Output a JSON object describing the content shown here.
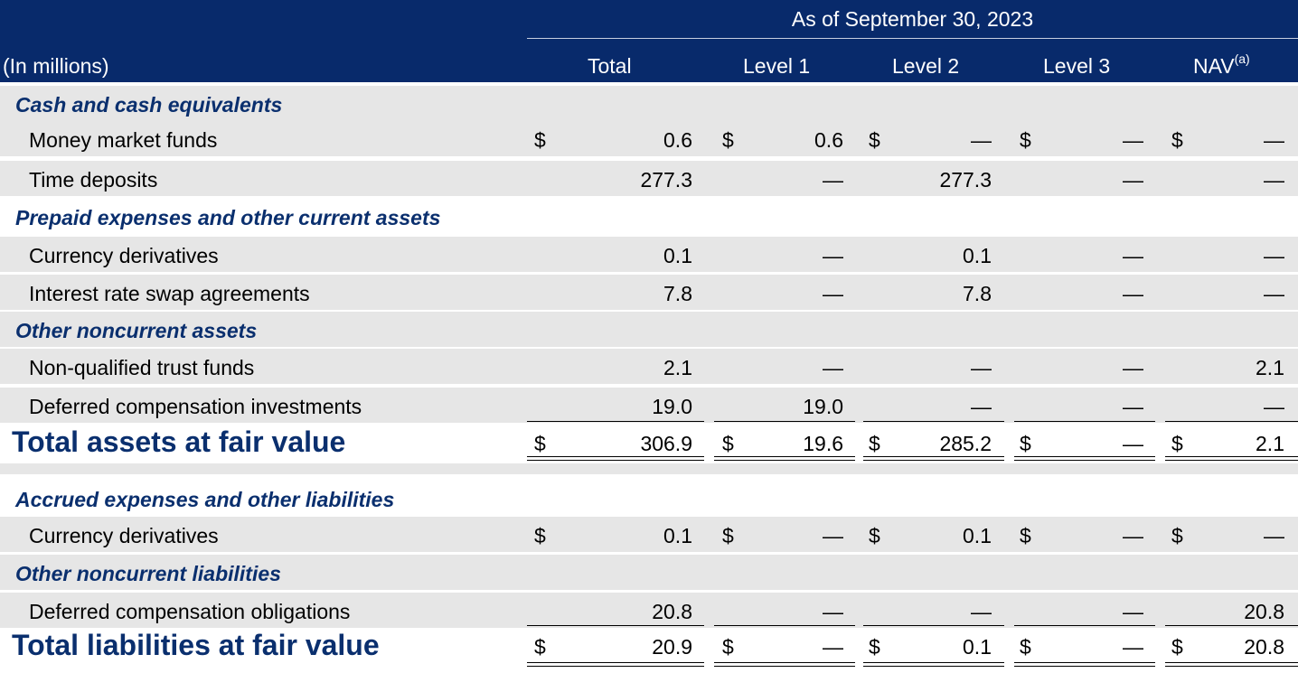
{
  "header": {
    "period": "As of September 30, 2023",
    "unit_label": "(In millions)",
    "columns": [
      "Total",
      "Level 1",
      "Level 2",
      "Level 3",
      "NAV"
    ],
    "nav_footnote": "(a)"
  },
  "currency_symbol": "$",
  "assets": {
    "cash_section": "Cash and cash equivalents",
    "money_market": {
      "label": "Money market funds",
      "values": [
        "0.6",
        "0.6",
        "—",
        "—",
        "—"
      ]
    },
    "time_deposits": {
      "label": "Time deposits",
      "values": [
        "277.3",
        "—",
        "277.3",
        "—",
        "—"
      ]
    },
    "prepaid_section": "Prepaid expenses and other current assets",
    "currency_derivatives": {
      "label": "Currency derivatives",
      "values": [
        "0.1",
        "—",
        "0.1",
        "—",
        "—"
      ]
    },
    "interest_rate_swap": {
      "label": "Interest rate swap agreements",
      "values": [
        "7.8",
        "—",
        "7.8",
        "—",
        "—"
      ]
    },
    "noncurrent_section": "Other noncurrent assets",
    "trust_funds": {
      "label": "Non-qualified trust funds",
      "values": [
        "2.1",
        "—",
        "—",
        "—",
        "2.1"
      ]
    },
    "deferred_comp_investments": {
      "label": "Deferred compensation investments",
      "values": [
        "19.0",
        "19.0",
        "—",
        "—",
        "—"
      ]
    },
    "total": {
      "label": "Total assets at fair value",
      "values": [
        "306.9",
        "19.6",
        "285.2",
        "—",
        "2.1"
      ]
    }
  },
  "liabilities": {
    "accrued_section": "Accrued expenses and other liabilities",
    "currency_derivatives": {
      "label": "Currency derivatives",
      "values": [
        "0.1",
        "—",
        "0.1",
        "—",
        "—"
      ]
    },
    "noncurrent_section": "Other noncurrent liabilities",
    "deferred_comp_obligations": {
      "label": "Deferred compensation obligations",
      "values": [
        "20.8",
        "—",
        "—",
        "—",
        "20.8"
      ]
    },
    "total": {
      "label": "Total liabilities at fair value",
      "values": [
        "20.9",
        "—",
        "0.1",
        "—",
        "20.8"
      ]
    }
  }
}
